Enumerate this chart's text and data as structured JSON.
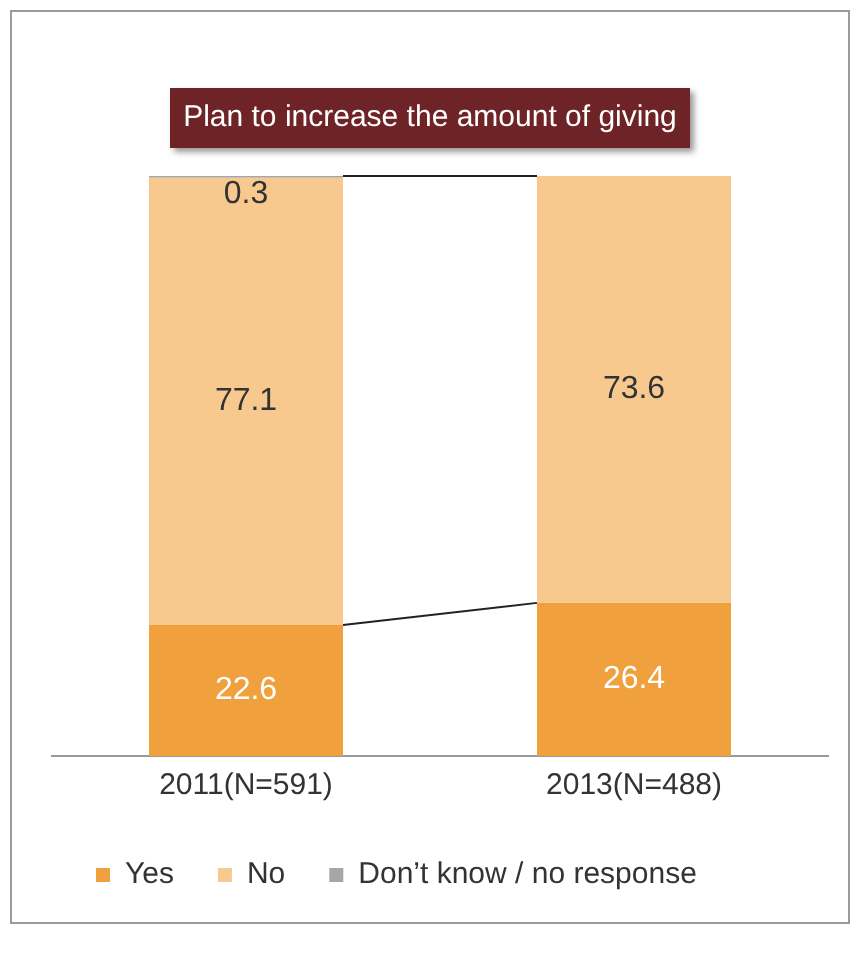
{
  "chart_data": {
    "type": "bar",
    "title": "Plan to increase the amount of giving",
    "categories": [
      "2011(N=591)",
      "2013(N=488)"
    ],
    "stacked": true,
    "ylim": [
      0,
      100
    ],
    "tick_labels": "x",
    "grid": false,
    "legend": "bottom",
    "data_labels": true,
    "series": [
      {
        "name": "Yes",
        "color": "#f0a03c",
        "values": [
          22.6,
          26.4
        ]
      },
      {
        "name": "No",
        "color": "#f7c98e",
        "values": [
          77.1,
          73.6
        ]
      },
      {
        "name": "Don’t know / no response",
        "color": "#a6a6a6",
        "values": [
          0.3,
          null
        ]
      }
    ]
  }
}
